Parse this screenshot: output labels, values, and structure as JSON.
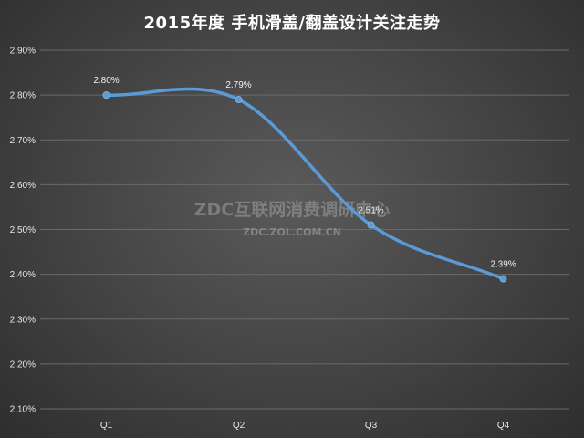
{
  "chart_data": {
    "type": "line",
    "title": "2015年度 手机滑盖/翻盖设计关注走势",
    "xlabel": "",
    "ylabel": "",
    "categories": [
      "Q1",
      "Q2",
      "Q3",
      "Q4"
    ],
    "series": [
      {
        "values": [
          2.8,
          2.79,
          2.51,
          2.39
        ],
        "data_labels": [
          "2.80%",
          "2.79%",
          "2.51%",
          "2.39%"
        ],
        "color": "#5b9bd5",
        "smooth": true
      }
    ],
    "ylim": [
      2.1,
      2.9
    ],
    "yticks": [
      "2.90%",
      "2.80%",
      "2.70%",
      "2.60%",
      "2.50%",
      "2.40%",
      "2.30%",
      "2.20%",
      "2.10%"
    ],
    "grid": true,
    "legend": "none"
  },
  "watermark": {
    "main": "ZDC互联网消费调研中心",
    "sub": "ZDC.ZOL.COM.CN"
  },
  "colors": {
    "line": "#5b9bd5",
    "background": "#474747",
    "grid": "#6a6a6a"
  }
}
